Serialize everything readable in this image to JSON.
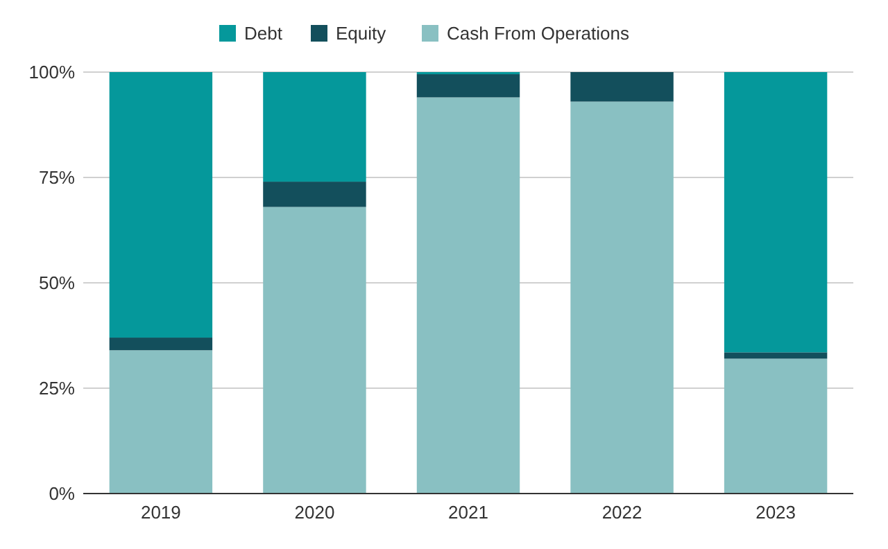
{
  "chart_data": {
    "type": "bar",
    "stacked": true,
    "categories": [
      "2019",
      "2020",
      "2021",
      "2022",
      "2023"
    ],
    "series": [
      {
        "name": "Cash From Operations",
        "color": "#89c0c2",
        "values": [
          34,
          68,
          94,
          93,
          32
        ]
      },
      {
        "name": "Equity",
        "color": "#134f5c",
        "values": [
          3,
          6,
          5.5,
          7,
          1.5
        ]
      },
      {
        "name": "Debt",
        "color": "#05989b",
        "values": [
          63,
          26,
          0.5,
          0,
          66.5
        ]
      }
    ],
    "ylim": [
      0,
      100
    ],
    "yticks": [
      {
        "value": 0,
        "label": "0%"
      },
      {
        "value": 25,
        "label": "25%"
      },
      {
        "value": 50,
        "label": "50%"
      },
      {
        "value": 75,
        "label": "75%"
      },
      {
        "value": 100,
        "label": "100%"
      }
    ],
    "grid": "y",
    "legend": "top"
  }
}
